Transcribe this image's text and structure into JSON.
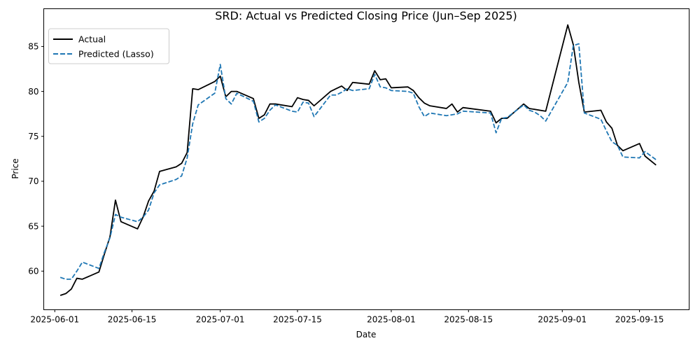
{
  "chart_data": {
    "type": "line",
    "title": "SRD: Actual vs Predicted Closing Price (Jun–Sep 2025)",
    "xlabel": "Date",
    "ylabel": "Price",
    "xlim": [
      "2025-05-30",
      "2025-09-24"
    ],
    "ylim": [
      55.7,
      89.2
    ],
    "yticks": [
      60,
      65,
      70,
      75,
      80,
      85
    ],
    "xticks": [
      "2025-06-01",
      "2025-06-15",
      "2025-07-01",
      "2025-07-15",
      "2025-08-01",
      "2025-08-15",
      "2025-09-01",
      "2025-09-15"
    ],
    "grid": false,
    "legend_position": "top-left",
    "colors": {
      "actual": "#000000",
      "predicted": "#1f77b4"
    },
    "series": [
      {
        "name": "Actual",
        "style": "solid",
        "points": [
          [
            "2025-06-02",
            57.3
          ],
          [
            "2025-06-03",
            57.5
          ],
          [
            "2025-06-04",
            58.0
          ],
          [
            "2025-06-05",
            59.2
          ],
          [
            "2025-06-06",
            59.1
          ],
          [
            "2025-06-09",
            59.9
          ],
          [
            "2025-06-10",
            61.9
          ],
          [
            "2025-06-11",
            63.8
          ],
          [
            "2025-06-12",
            67.9
          ],
          [
            "2025-06-13",
            65.5
          ],
          [
            "2025-06-16",
            64.7
          ],
          [
            "2025-06-17",
            66.0
          ],
          [
            "2025-06-18",
            67.8
          ],
          [
            "2025-06-19",
            68.9
          ],
          [
            "2025-06-20",
            71.1
          ],
          [
            "2025-06-23",
            71.6
          ],
          [
            "2025-06-24",
            72.0
          ],
          [
            "2025-06-25",
            73.2
          ],
          [
            "2025-06-26",
            80.3
          ],
          [
            "2025-06-27",
            80.2
          ],
          [
            "2025-06-30",
            81.1
          ],
          [
            "2025-07-01",
            81.7
          ],
          [
            "2025-07-02",
            79.4
          ],
          [
            "2025-07-03",
            80.0
          ],
          [
            "2025-07-04",
            80.0
          ],
          [
            "2025-07-07",
            79.2
          ],
          [
            "2025-07-08",
            77.0
          ],
          [
            "2025-07-09",
            77.4
          ],
          [
            "2025-07-10",
            78.6
          ],
          [
            "2025-07-11",
            78.6
          ],
          [
            "2025-07-14",
            78.3
          ],
          [
            "2025-07-15",
            79.3
          ],
          [
            "2025-07-16",
            79.1
          ],
          [
            "2025-07-17",
            79.0
          ],
          [
            "2025-07-18",
            78.4
          ],
          [
            "2025-07-21",
            80.0
          ],
          [
            "2025-07-22",
            80.3
          ],
          [
            "2025-07-23",
            80.6
          ],
          [
            "2025-07-24",
            80.1
          ],
          [
            "2025-07-25",
            81.0
          ],
          [
            "2025-07-28",
            80.8
          ],
          [
            "2025-07-29",
            82.3
          ],
          [
            "2025-07-30",
            81.3
          ],
          [
            "2025-07-31",
            81.4
          ],
          [
            "2025-08-01",
            80.4
          ],
          [
            "2025-08-04",
            80.5
          ],
          [
            "2025-08-05",
            80.1
          ],
          [
            "2025-08-06",
            79.3
          ],
          [
            "2025-08-07",
            78.7
          ],
          [
            "2025-08-08",
            78.4
          ],
          [
            "2025-08-11",
            78.1
          ],
          [
            "2025-08-12",
            78.6
          ],
          [
            "2025-08-13",
            77.7
          ],
          [
            "2025-08-14",
            78.2
          ],
          [
            "2025-08-19",
            77.8
          ],
          [
            "2025-08-20",
            76.5
          ],
          [
            "2025-08-21",
            77.0
          ],
          [
            "2025-08-22",
            77.0
          ],
          [
            "2025-08-25",
            78.6
          ],
          [
            "2025-08-26",
            78.1
          ],
          [
            "2025-08-29",
            77.8
          ],
          [
            "2025-09-02",
            87.4
          ],
          [
            "2025-09-03",
            85.2
          ],
          [
            "2025-09-04",
            81.0
          ],
          [
            "2025-09-05",
            77.7
          ],
          [
            "2025-09-08",
            77.9
          ],
          [
            "2025-09-09",
            76.6
          ],
          [
            "2025-09-10",
            75.9
          ],
          [
            "2025-09-11",
            74.0
          ],
          [
            "2025-09-12",
            73.4
          ],
          [
            "2025-09-15",
            74.2
          ],
          [
            "2025-09-16",
            72.8
          ],
          [
            "2025-09-18",
            71.8
          ]
        ]
      },
      {
        "name": "Predicted (Lasso)",
        "style": "dashed",
        "points": [
          [
            "2025-06-02",
            59.3
          ],
          [
            "2025-06-03",
            59.1
          ],
          [
            "2025-06-04",
            59.1
          ],
          [
            "2025-06-05",
            60.0
          ],
          [
            "2025-06-06",
            61.0
          ],
          [
            "2025-06-09",
            60.3
          ],
          [
            "2025-06-10",
            62.1
          ],
          [
            "2025-06-11",
            63.7
          ],
          [
            "2025-06-12",
            66.3
          ],
          [
            "2025-06-13",
            66.0
          ],
          [
            "2025-06-16",
            65.5
          ],
          [
            "2025-06-17",
            66.0
          ],
          [
            "2025-06-18",
            66.8
          ],
          [
            "2025-06-19",
            68.7
          ],
          [
            "2025-06-20",
            69.6
          ],
          [
            "2025-06-23",
            70.2
          ],
          [
            "2025-06-24",
            70.6
          ],
          [
            "2025-06-25",
            72.6
          ],
          [
            "2025-06-26",
            76.4
          ],
          [
            "2025-06-27",
            78.5
          ],
          [
            "2025-06-30",
            79.8
          ],
          [
            "2025-07-01",
            83.0
          ],
          [
            "2025-07-02",
            79.2
          ],
          [
            "2025-07-03",
            78.6
          ],
          [
            "2025-07-04",
            79.8
          ],
          [
            "2025-07-07",
            78.9
          ],
          [
            "2025-07-08",
            76.6
          ],
          [
            "2025-07-09",
            77.0
          ],
          [
            "2025-07-10",
            77.9
          ],
          [
            "2025-07-11",
            78.5
          ],
          [
            "2025-07-14",
            77.8
          ],
          [
            "2025-07-15",
            77.7
          ],
          [
            "2025-07-16",
            78.8
          ],
          [
            "2025-07-17",
            78.7
          ],
          [
            "2025-07-18",
            77.2
          ],
          [
            "2025-07-21",
            79.6
          ],
          [
            "2025-07-22",
            79.6
          ],
          [
            "2025-07-23",
            79.9
          ],
          [
            "2025-07-24",
            80.3
          ],
          [
            "2025-07-25",
            80.1
          ],
          [
            "2025-07-28",
            80.3
          ],
          [
            "2025-07-29",
            81.9
          ],
          [
            "2025-07-30",
            80.5
          ],
          [
            "2025-07-31",
            80.4
          ],
          [
            "2025-08-01",
            80.1
          ],
          [
            "2025-08-04",
            80.0
          ],
          [
            "2025-08-05",
            79.8
          ],
          [
            "2025-08-06",
            78.3
          ],
          [
            "2025-08-07",
            77.2
          ],
          [
            "2025-08-08",
            77.6
          ],
          [
            "2025-08-11",
            77.3
          ],
          [
            "2025-08-12",
            77.4
          ],
          [
            "2025-08-13",
            77.5
          ],
          [
            "2025-08-14",
            77.8
          ],
          [
            "2025-08-19",
            77.6
          ],
          [
            "2025-08-20",
            75.4
          ],
          [
            "2025-08-21",
            77.0
          ],
          [
            "2025-08-22",
            77.1
          ],
          [
            "2025-08-25",
            78.5
          ],
          [
            "2025-08-26",
            77.9
          ],
          [
            "2025-08-27",
            77.7
          ],
          [
            "2025-08-28",
            77.3
          ],
          [
            "2025-08-29",
            76.7
          ],
          [
            "2025-09-02",
            81.0
          ],
          [
            "2025-09-03",
            85.1
          ],
          [
            "2025-09-04",
            85.3
          ],
          [
            "2025-09-05",
            77.6
          ],
          [
            "2025-09-08",
            76.9
          ],
          [
            "2025-09-09",
            75.6
          ],
          [
            "2025-09-10",
            74.4
          ],
          [
            "2025-09-11",
            74.0
          ],
          [
            "2025-09-12",
            72.7
          ],
          [
            "2025-09-15",
            72.6
          ],
          [
            "2025-09-16",
            73.3
          ],
          [
            "2025-09-18",
            72.4
          ]
        ]
      }
    ]
  }
}
